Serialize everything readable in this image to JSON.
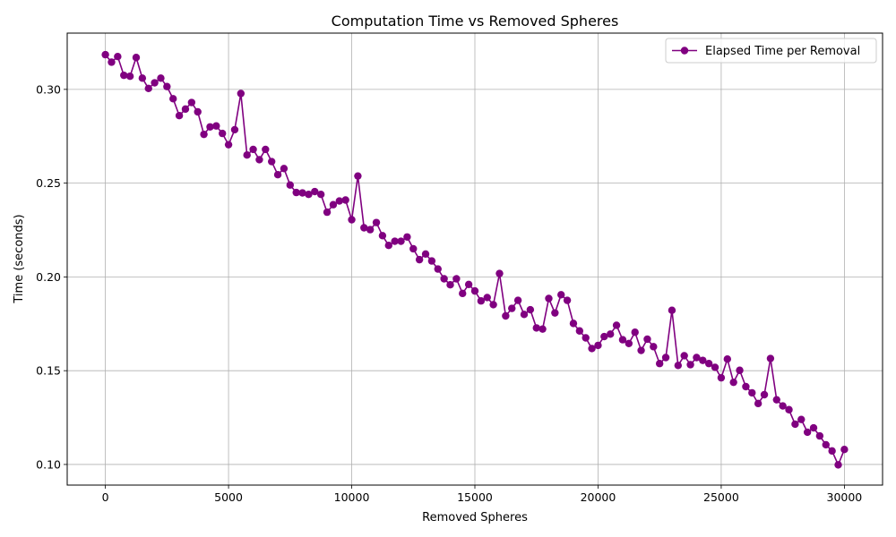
{
  "chart_data": {
    "type": "line",
    "title": "Computation Time vs Removed Spheres",
    "xlabel": "Removed Spheres",
    "ylabel": "Time (seconds)",
    "xlim": [
      -1550,
      31550
    ],
    "ylim": [
      0.089,
      0.33
    ],
    "xticks": [
      0,
      5000,
      10000,
      15000,
      20000,
      25000,
      30000
    ],
    "xtick_labels": [
      "0",
      "5000",
      "10000",
      "15000",
      "20000",
      "25000",
      "30000"
    ],
    "yticks": [
      0.1,
      0.15,
      0.2,
      0.25,
      0.3
    ],
    "ytick_labels": [
      "0.10",
      "0.15",
      "0.20",
      "0.25",
      "0.30"
    ],
    "grid": true,
    "legend_position": "top-right",
    "series": [
      {
        "name": "Elapsed Time per Removal",
        "color": "#800080",
        "marker": "circle",
        "x": [
          0,
          250,
          500,
          750,
          1000,
          1250,
          1500,
          1750,
          2000,
          2250,
          2500,
          2750,
          3000,
          3250,
          3500,
          3750,
          4000,
          4250,
          4500,
          4750,
          5000,
          5250,
          5500,
          5750,
          6000,
          6250,
          6500,
          6750,
          7000,
          7250,
          7500,
          7750,
          8000,
          8250,
          8500,
          8750,
          9000,
          9250,
          9500,
          9750,
          10000,
          10250,
          10500,
          10750,
          11000,
          11250,
          11500,
          11750,
          12000,
          12250,
          12500,
          12750,
          13000,
          13250,
          13500,
          13750,
          14000,
          14250,
          14500,
          14750,
          15000,
          15250,
          15500,
          15750,
          16000,
          16250,
          16500,
          16750,
          17000,
          17250,
          17500,
          17750,
          18000,
          18250,
          18500,
          18750,
          19000,
          19250,
          19500,
          19750,
          20000,
          20250,
          20500,
          20750,
          21000,
          21250,
          21500,
          21750,
          22000,
          22250,
          22500,
          22750,
          23000,
          23250,
          23500,
          23750,
          24000,
          24250,
          24500,
          24750,
          25000,
          25250,
          25500,
          25750,
          26000,
          26250,
          26500,
          26750,
          27000,
          27250,
          27500,
          27750,
          28000,
          28250,
          28500,
          28750,
          29000,
          29250,
          29500,
          29750,
          30000
        ],
        "y": [
          0.3185,
          0.3145,
          0.3175,
          0.3075,
          0.307,
          0.317,
          0.306,
          0.3005,
          0.3035,
          0.306,
          0.3015,
          0.295,
          0.286,
          0.2895,
          0.293,
          0.288,
          0.276,
          0.28,
          0.2805,
          0.2765,
          0.2705,
          0.2785,
          0.2978,
          0.265,
          0.268,
          0.2625,
          0.268,
          0.2615,
          0.2545,
          0.2578,
          0.249,
          0.245,
          0.2448,
          0.244,
          0.2455,
          0.244,
          0.2345,
          0.2385,
          0.2405,
          0.241,
          0.2305,
          0.2538,
          0.2262,
          0.2252,
          0.229,
          0.222,
          0.2168,
          0.219,
          0.219,
          0.2213,
          0.215,
          0.2092,
          0.2122,
          0.2085,
          0.2042,
          0.199,
          0.1958,
          0.199,
          0.1912,
          0.196,
          0.1925,
          0.1872,
          0.189,
          0.1852,
          0.2018,
          0.1792,
          0.1832,
          0.1875,
          0.18,
          0.1825,
          0.1728,
          0.1722,
          0.1885,
          0.1808,
          0.1905,
          0.1875,
          0.1752,
          0.1712,
          0.1675,
          0.1618,
          0.1635,
          0.1682,
          0.1695,
          0.1742,
          0.1665,
          0.1645,
          0.1705,
          0.1608,
          0.1668,
          0.1628,
          0.1538,
          0.157,
          0.1822,
          0.1528,
          0.158,
          0.1532,
          0.157,
          0.1555,
          0.1538,
          0.1518,
          0.1462,
          0.1562,
          0.1438,
          0.1502,
          0.1415,
          0.1382,
          0.1325,
          0.1372,
          0.1565,
          0.1345,
          0.1312,
          0.1292,
          0.1215,
          0.124,
          0.1172,
          0.1195,
          0.1152,
          0.1105,
          0.1072,
          0.0998,
          0.108
        ]
      }
    ]
  }
}
